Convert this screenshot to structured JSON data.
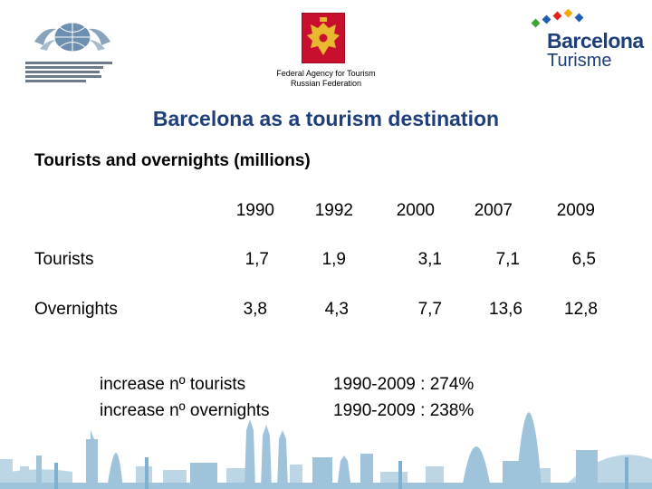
{
  "logos": {
    "left_logo_icon": "world-tourism-organization-logo",
    "center_emblem_icon": "russian-coat-of-arms",
    "right_logo_icon": "barcelona-turisme-logo",
    "right_logo_line1": "Barcelona",
    "right_logo_line2": "Turisme"
  },
  "agency": {
    "line1": "Federal Agency for Tourism",
    "line2": "Russian Federation"
  },
  "title": "Barcelona as a tourism destination",
  "subtitle": "Tourists and overnights (millions)",
  "table": {
    "years": [
      "1990",
      "1992",
      "2000",
      "2007",
      "2009"
    ],
    "rows": [
      {
        "label": "Tourists",
        "values": [
          "1,7",
          "1,9",
          "3,1",
          "7,1",
          "6,5"
        ]
      },
      {
        "label": "Overnights",
        "values": [
          "3,8",
          "4,3",
          "7,7",
          "13,6",
          "12,8"
        ]
      }
    ]
  },
  "summary": [
    {
      "label": "increase nº tourists",
      "value": "1990-2009 :  274%"
    },
    {
      "label": "increase nº overnights",
      "value": "1990-2009 :  238%"
    }
  ],
  "colors": {
    "title": "#1f3f7a",
    "skyline": "#9ec3da",
    "emblem_red": "#c8102e",
    "emblem_gold": "#e8b830"
  }
}
